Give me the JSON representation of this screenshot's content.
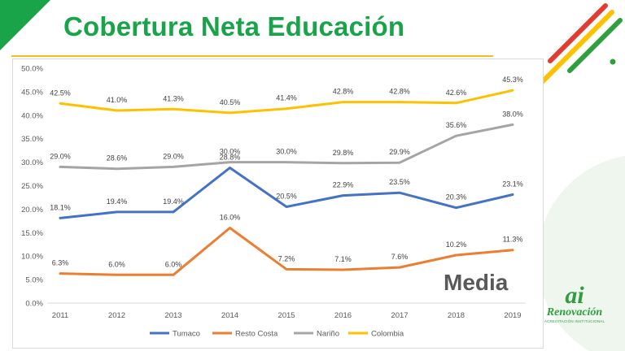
{
  "slide": {
    "title": "Cobertura Neta Educación",
    "badge": "Media",
    "logo": {
      "mark": "ai",
      "word": "Renovación",
      "sub": "ACREDITACIÓN INSTITUCIONAL"
    }
  },
  "colors": {
    "title": "#1aa44a",
    "accent_green": "#1aa44a",
    "accent_yellow": "#e6c31e",
    "accent_red": "#e03c31"
  },
  "chart_data": {
    "type": "line",
    "categories": [
      "2011",
      "2012",
      "2013",
      "2014",
      "2015",
      "2016",
      "2017",
      "2018",
      "2019"
    ],
    "yticks": [
      "0.0%",
      "5.0%",
      "10.0%",
      "15.0%",
      "20.0%",
      "25.0%",
      "30.0%",
      "35.0%",
      "40.0%",
      "45.0%",
      "50.0%"
    ],
    "ylim": [
      0,
      50
    ],
    "legend_position": "bottom",
    "grid": false,
    "series": [
      {
        "name": "Tumaco",
        "color": "#4472c4",
        "values": [
          18.1,
          19.4,
          19.4,
          28.8,
          20.5,
          22.9,
          23.5,
          20.3,
          23.1
        ],
        "labels": [
          "18.1%",
          "19.4%",
          "19.4%",
          "28.8%",
          "20.5%",
          "22.9%",
          "23.5%",
          "20.3%",
          "23.1%"
        ]
      },
      {
        "name": "Resto Costa",
        "color": "#ed7d31",
        "values": [
          6.3,
          6.0,
          6.0,
          16.0,
          7.2,
          7.1,
          7.6,
          10.2,
          11.3
        ],
        "labels": [
          "6.3%",
          "6.0%",
          "6.0%",
          "16.0%",
          "7.2%",
          "7.1%",
          "7.6%",
          "10.2%",
          "11.3%"
        ]
      },
      {
        "name": "Nariño",
        "color": "#a5a5a5",
        "values": [
          29.0,
          28.6,
          29.0,
          30.0,
          30.0,
          29.8,
          29.9,
          35.6,
          38.0
        ],
        "labels": [
          "29.0%",
          "28.6%",
          "29.0%",
          "30.0%",
          "30.0%",
          "29.8%",
          "29.9%",
          "35.6%",
          "38.0%"
        ]
      },
      {
        "name": "Colombia",
        "color": "#ffc000",
        "values": [
          42.5,
          41.0,
          41.3,
          40.5,
          41.4,
          42.8,
          42.8,
          42.6,
          45.3
        ],
        "labels": [
          "42.5%",
          "41.0%",
          "41.3%",
          "40.5%",
          "41.4%",
          "42.8%",
          "42.8%",
          "42.6%",
          "45.3%"
        ]
      }
    ]
  }
}
